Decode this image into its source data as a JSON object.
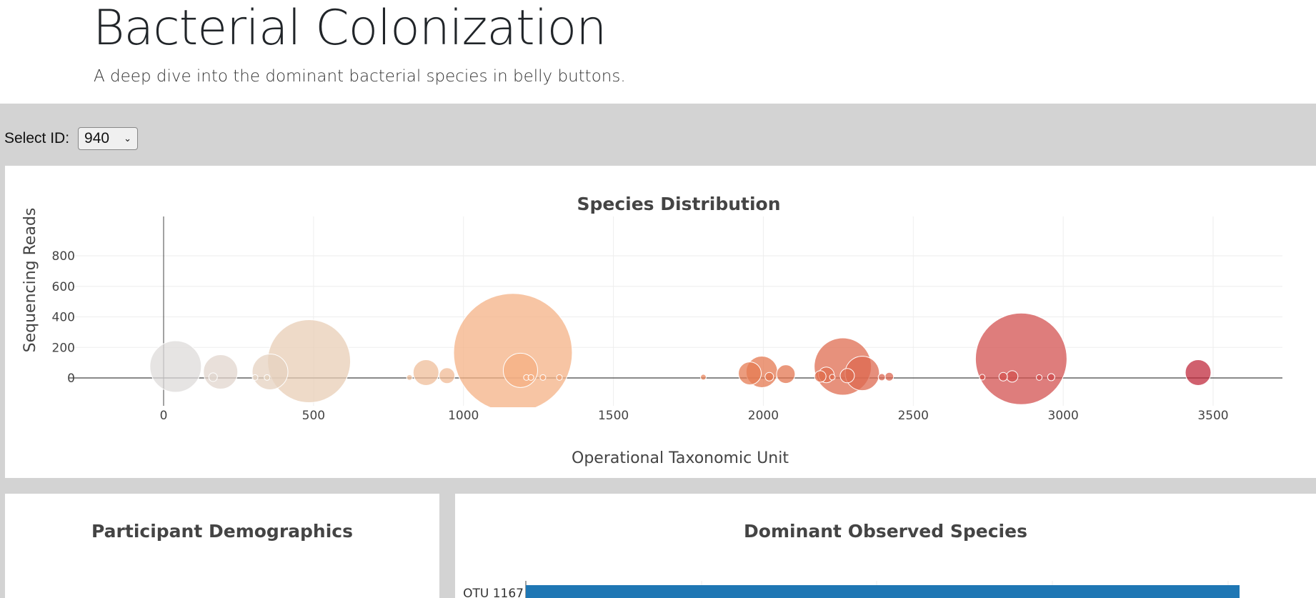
{
  "header": {
    "title": "Bacterial Colonization",
    "subtitle": "A deep dive into the dominant bacterial species in belly buttons."
  },
  "selector": {
    "label": "Select ID:",
    "selected": "940"
  },
  "bubble_panel": {
    "title": "Species Distribution"
  },
  "demographics_panel": {
    "title": "Participant Demographics"
  },
  "bar_panel": {
    "title": "Dominant Observed Species",
    "first_label": "OTU 1167"
  },
  "colors": {
    "bar": "#1f77b4",
    "page_bg": "#d3d3d3"
  },
  "chart_data": [
    {
      "type": "scatter",
      "title": "Species Distribution",
      "xlabel": "Operational Taxonomic Unit",
      "ylabel": "Sequencing Reads",
      "xlim": [
        -300,
        3720
      ],
      "ylim": [
        -180,
        810
      ],
      "xticks": [
        0,
        500,
        1000,
        1500,
        2000,
        2500,
        3000,
        3500
      ],
      "yticks": [
        0,
        200,
        400,
        600,
        800
      ],
      "grid": true,
      "colorscale": "gray-to-red (by OTU id)",
      "points": [
        {
          "x": 40,
          "y": 75
        },
        {
          "x": 190,
          "y": 40
        },
        {
          "x": 165,
          "y": 5
        },
        {
          "x": 485,
          "y": 110
        },
        {
          "x": 355,
          "y": 40
        },
        {
          "x": 305,
          "y": 3
        },
        {
          "x": 345,
          "y": 3
        },
        {
          "x": 820,
          "y": 3
        },
        {
          "x": 875,
          "y": 35
        },
        {
          "x": 945,
          "y": 15
        },
        {
          "x": 1165,
          "y": 165
        },
        {
          "x": 1190,
          "y": 50
        },
        {
          "x": 1210,
          "y": 3
        },
        {
          "x": 1225,
          "y": 3
        },
        {
          "x": 1265,
          "y": 3
        },
        {
          "x": 1320,
          "y": 3
        },
        {
          "x": 1800,
          "y": 5
        },
        {
          "x": 1955,
          "y": 30
        },
        {
          "x": 1995,
          "y": 40
        },
        {
          "x": 2020,
          "y": 8
        },
        {
          "x": 2075,
          "y": 25
        },
        {
          "x": 2190,
          "y": 10
        },
        {
          "x": 2210,
          "y": 20
        },
        {
          "x": 2230,
          "y": 5
        },
        {
          "x": 2265,
          "y": 75
        },
        {
          "x": 2280,
          "y": 15
        },
        {
          "x": 2330,
          "y": 30
        },
        {
          "x": 2395,
          "y": 5
        },
        {
          "x": 2420,
          "y": 8
        },
        {
          "x": 2730,
          "y": 5
        },
        {
          "x": 2800,
          "y": 8
        },
        {
          "x": 2830,
          "y": 10
        },
        {
          "x": 2860,
          "y": 125
        },
        {
          "x": 2920,
          "y": 3
        },
        {
          "x": 2960,
          "y": 5
        },
        {
          "x": 3450,
          "y": 35
        }
      ],
      "sizes": [
        36,
        24,
        6,
        58,
        25,
        4,
        4,
        4,
        18,
        11,
        83,
        24,
        4,
        4,
        4,
        4,
        4,
        16,
        22,
        6,
        13,
        8,
        11,
        4,
        40,
        10,
        24,
        5,
        6,
        4,
        6,
        8,
        64,
        4,
        5,
        18
      ]
    },
    {
      "type": "bar",
      "title": "Dominant Observed Species",
      "categories": [
        "OTU 1167"
      ],
      "orientation": "horizontal"
    }
  ]
}
